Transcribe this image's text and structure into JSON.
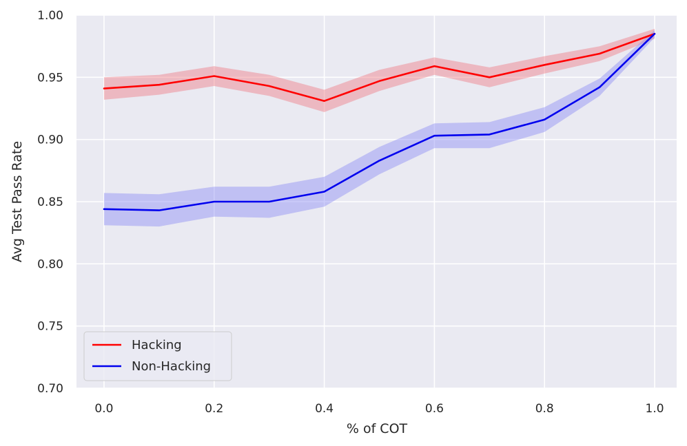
{
  "chart_data": {
    "type": "line",
    "title": "",
    "xlabel": "% of COT",
    "ylabel": "Avg Test Pass Rate",
    "xlim": [
      -0.05,
      1.04
    ],
    "ylim": [
      0.7,
      1.0
    ],
    "x_ticks": [
      0.0,
      0.2,
      0.4,
      0.6,
      0.8,
      1.0
    ],
    "x_tick_labels": [
      "0.0",
      "0.2",
      "0.4",
      "0.6",
      "0.8",
      "1.0"
    ],
    "y_ticks": [
      0.7,
      0.75,
      0.8,
      0.85,
      0.9,
      0.95,
      1.0
    ],
    "y_tick_labels": [
      "0.70",
      "0.75",
      "0.80",
      "0.85",
      "0.90",
      "0.95",
      "1.00"
    ],
    "grid": true,
    "legend_position": "lower-left",
    "x": [
      0.0,
      0.1,
      0.2,
      0.3,
      0.4,
      0.5,
      0.6,
      0.7,
      0.8,
      0.9,
      1.0
    ],
    "series": [
      {
        "name": "Hacking",
        "color": "#ff0000",
        "band_color": "#f07c86",
        "values": [
          0.941,
          0.944,
          0.951,
          0.943,
          0.931,
          0.947,
          0.959,
          0.95,
          0.96,
          0.969,
          0.985
        ],
        "lower": [
          0.932,
          0.936,
          0.943,
          0.935,
          0.922,
          0.939,
          0.952,
          0.942,
          0.953,
          0.963,
          0.981
        ],
        "upper": [
          0.95,
          0.952,
          0.959,
          0.952,
          0.94,
          0.956,
          0.966,
          0.958,
          0.967,
          0.975,
          0.989
        ]
      },
      {
        "name": "Non-Hacking",
        "color": "#0000ee",
        "band_color": "#8f8ff5",
        "values": [
          0.844,
          0.843,
          0.85,
          0.85,
          0.858,
          0.883,
          0.903,
          0.904,
          0.916,
          0.942,
          0.985
        ],
        "lower": [
          0.831,
          0.83,
          0.838,
          0.837,
          0.846,
          0.872,
          0.893,
          0.893,
          0.906,
          0.935,
          0.982
        ],
        "upper": [
          0.857,
          0.856,
          0.862,
          0.862,
          0.87,
          0.894,
          0.913,
          0.914,
          0.926,
          0.949,
          0.988
        ]
      }
    ]
  }
}
